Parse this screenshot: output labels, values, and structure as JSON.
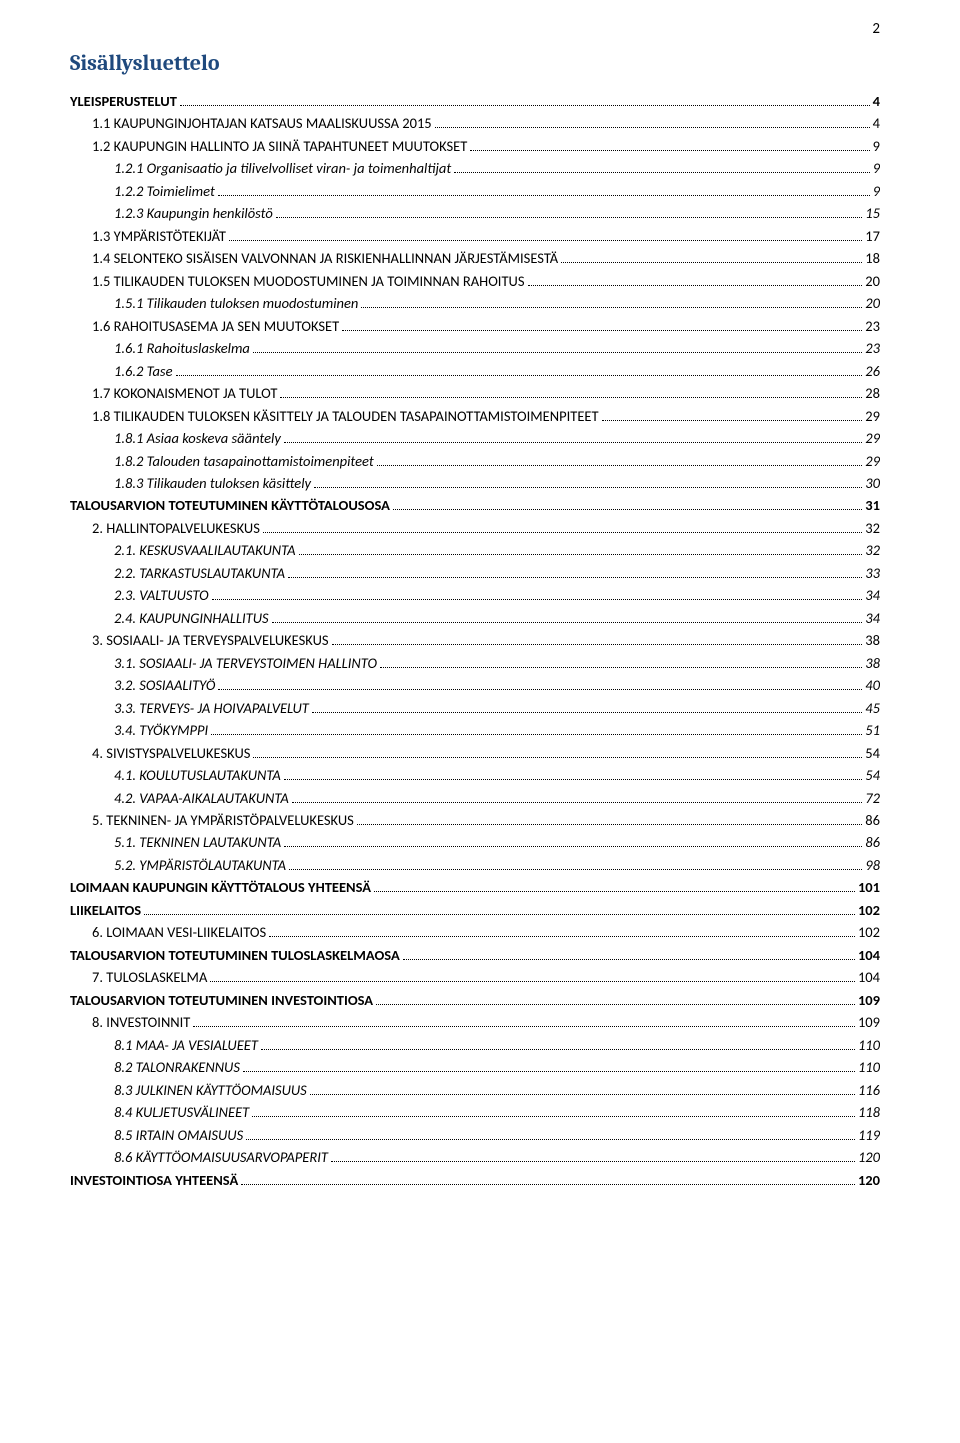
{
  "page_number": "2",
  "toc_title": "Sisällysluettelo",
  "entries": [
    {
      "level": "l1",
      "text": "YLEISPERUSTELUT",
      "page": "4",
      "smallcaps": false
    },
    {
      "level": "l2",
      "text": "1.1 KAUPUNGINJOHTAJAN KATSAUS MAALISKUUSSA 2015",
      "page": "4",
      "smallcaps": true
    },
    {
      "level": "l2",
      "text": "1.2 KAUPUNGIN HALLINTO JA SIINÄ TAPAHTUNEET MUUTOKSET",
      "page": "9",
      "smallcaps": true
    },
    {
      "level": "l3",
      "text": "1.2.1 Organisaatio ja tilivelvolliset viran- ja toimenhaltijat",
      "page": "9",
      "italic": true
    },
    {
      "level": "l3",
      "text": "1.2.2 Toimielimet",
      "page": "9",
      "italic": true
    },
    {
      "level": "l3",
      "text": "1.2.3 Kaupungin henkilöstö",
      "page": "15",
      "italic": true
    },
    {
      "level": "l2",
      "text": "1.3 YMPÄRISTÖTEKIJÄT",
      "page": "17",
      "smallcaps": true
    },
    {
      "level": "l2",
      "text": "1.4 SELONTEKO SISÄISEN VALVONNAN JA RISKIENHALLINNAN JÄRJESTÄMISESTÄ",
      "page": "18",
      "smallcaps": true
    },
    {
      "level": "l2",
      "text": "1.5 TILIKAUDEN TULOKSEN MUODOSTUMINEN JA TOIMINNAN RAHOITUS",
      "page": "20",
      "smallcaps": true
    },
    {
      "level": "l3",
      "text": "1.5.1 Tilikauden tuloksen muodostuminen",
      "page": "20",
      "italic": true
    },
    {
      "level": "l2",
      "text": "1.6 RAHOITUSASEMA JA SEN MUUTOKSET",
      "page": "23",
      "smallcaps": true
    },
    {
      "level": "l3",
      "text": "1.6.1 Rahoituslaskelma",
      "page": "23",
      "italic": true
    },
    {
      "level": "l3",
      "text": "1.6.2 Tase",
      "page": "26",
      "italic": true
    },
    {
      "level": "l2",
      "text": "1.7 KOKONAISMENOT JA TULOT",
      "page": "28",
      "smallcaps": true
    },
    {
      "level": "l2",
      "text": "1.8 TILIKAUDEN TULOKSEN KÄSITTELY JA TALOUDEN TASAPAINOTTAMISTOIMENPITEET",
      "page": "29",
      "smallcaps": true
    },
    {
      "level": "l3",
      "text": "1.8.1 Asiaa koskeva sääntely",
      "page": "29",
      "italic": true
    },
    {
      "level": "l3",
      "text": "1.8.2 Talouden tasapainottamistoimenpiteet",
      "page": "29",
      "italic": true
    },
    {
      "level": "l3",
      "text": "1.8.3 Tilikauden tuloksen käsittely",
      "page": "30",
      "italic": true
    },
    {
      "level": "l1",
      "text": "TALOUSARVION TOTEUTUMINEN KÄYTTÖTALOUSOSA",
      "page": "31"
    },
    {
      "level": "l2",
      "text": "2. HALLINTOPALVELUKESKUS",
      "page": "32"
    },
    {
      "level": "l3",
      "text": "2.1. KESKUSVAALILAUTAKUNTA",
      "page": "32",
      "italic": true
    },
    {
      "level": "l3",
      "text": "2.2. TARKASTUSLAUTAKUNTA",
      "page": "33",
      "italic": true
    },
    {
      "level": "l3",
      "text": "2.3. VALTUUSTO",
      "page": "34",
      "italic": true
    },
    {
      "level": "l3",
      "text": "2.4. KAUPUNGINHALLITUS",
      "page": "34",
      "italic": true
    },
    {
      "level": "l2",
      "text": "3. SOSIAALI- JA TERVEYSPALVELUKESKUS",
      "page": "38"
    },
    {
      "level": "l3",
      "text": "3.1. SOSIAALI- JA TERVEYSTOIMEN HALLINTO",
      "page": "38",
      "italic": true
    },
    {
      "level": "l3",
      "text": "3.2. SOSIAALITYÖ",
      "page": "40",
      "italic": true
    },
    {
      "level": "l3",
      "text": "3.3. TERVEYS- JA HOIVAPALVELUT",
      "page": "45",
      "italic": true
    },
    {
      "level": "l3",
      "text": "3.4.  TYÖKYMPPI",
      "page": "51",
      "italic": true
    },
    {
      "level": "l2",
      "text": "4. SIVISTYSPALVELUKESKUS",
      "page": "54"
    },
    {
      "level": "l3",
      "text": "4.1. KOULUTUSLAUTAKUNTA",
      "page": "54",
      "italic": true
    },
    {
      "level": "l3",
      "text": "4.2. VAPAA-AIKALAUTAKUNTA",
      "page": "72",
      "italic": true
    },
    {
      "level": "l2",
      "text": "5. TEKNINEN- JA YMPÄRISTÖPALVELUKESKUS",
      "page": "86"
    },
    {
      "level": "l3",
      "text": "5.1. TEKNINEN LAUTAKUNTA",
      "page": "86",
      "italic": true
    },
    {
      "level": "l3",
      "text": "5.2. YMPÄRISTÖLAUTAKUNTA",
      "page": "98",
      "italic": true
    },
    {
      "level": "l1",
      "text": "LOIMAAN KAUPUNGIN KÄYTTÖTALOUS YHTEENSÄ",
      "page": "101"
    },
    {
      "level": "l1",
      "text": "LIIKELAITOS",
      "page": "102"
    },
    {
      "level": "l2",
      "text": "6. LOIMAAN  VESI-LIIKELAITOS",
      "page": "102"
    },
    {
      "level": "l1",
      "text": "TALOUSARVION TOTEUTUMINEN TULOSLASKELMAOSA",
      "page": "104"
    },
    {
      "level": "l2",
      "text": "7. TULOSLASKELMA",
      "page": "104"
    },
    {
      "level": "l1",
      "text": "TALOUSARVION TOTEUTUMINEN INVESTOINTIOSA",
      "page": "109"
    },
    {
      "level": "l2",
      "text": "8. INVESTOINNIT",
      "page": "109"
    },
    {
      "level": "l3",
      "text": "8.1    MAA- JA VESIALUEET",
      "page": "110",
      "italic": true
    },
    {
      "level": "l3",
      "text": "8.2    TALONRAKENNUS",
      "page": "110",
      "italic": true
    },
    {
      "level": "l3",
      "text": "8.3    JULKINEN KÄYTTÖOMAISUUS",
      "page": "116",
      "italic": true
    },
    {
      "level": "l3",
      "text": "8.4    KULJETUSVÄLINEET",
      "page": "118",
      "italic": true
    },
    {
      "level": "l3",
      "text": "8.5    IRTAIN OMAISUUS",
      "page": "119",
      "italic": true
    },
    {
      "level": "l3",
      "text": "8.6    KÄYTTÖOMAISUUSARVOPAPERIT",
      "page": "120",
      "italic": true
    },
    {
      "level": "l1",
      "text": "INVESTOINTIOSA YHTEENSÄ",
      "page": "120"
    }
  ]
}
